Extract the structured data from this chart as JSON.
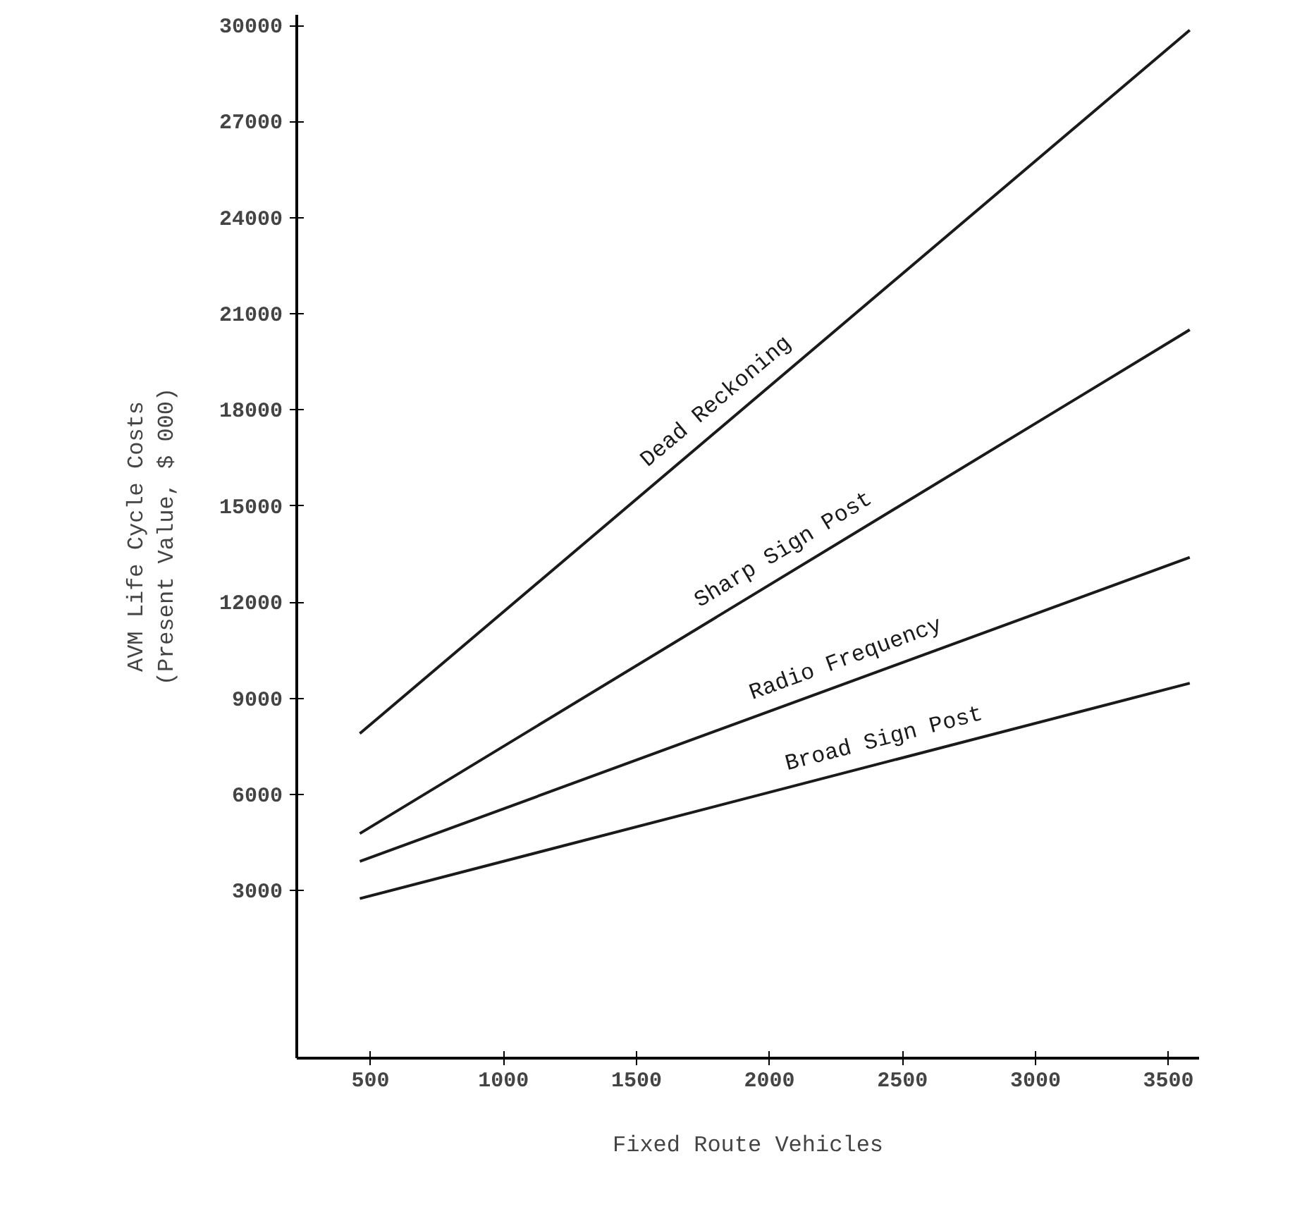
{
  "chart_data": {
    "type": "line",
    "xlabel": "Fixed Route Vehicles",
    "ylabel": "AVM Life Cycle Costs\n(Present Value, $ 000)",
    "xlim": [
      223,
      3615
    ],
    "ylim": [
      -2230,
      30330
    ],
    "xticks": [
      500,
      1000,
      1500,
      2000,
      2500,
      3000,
      3500
    ],
    "yticks": [
      3000,
      6000,
      9000,
      12000,
      15000,
      18000,
      21000,
      24000,
      27000,
      30000
    ],
    "grid": false,
    "marker": "none",
    "line_style": "solid",
    "x": [
      460,
      3580
    ],
    "series": [
      {
        "name": "Dead Reckoning",
        "color": "#1a1a1a",
        "values": [
          7900,
          29850
        ]
      },
      {
        "name": "Sharp Sign Post",
        "color": "#1a1a1a",
        "values": [
          4780,
          20500
        ]
      },
      {
        "name": "Radio Frequency",
        "color": "#1a1a1a",
        "values": [
          3910,
          13400
        ]
      },
      {
        "name": "Broad Sign Post",
        "color": "#1a1a1a",
        "values": [
          2750,
          9470
        ]
      }
    ]
  }
}
